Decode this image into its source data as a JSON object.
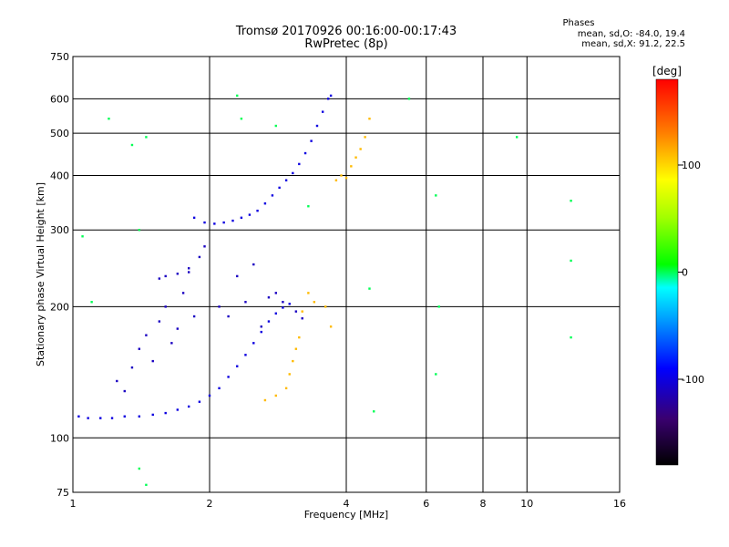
{
  "chart_data": {
    "type": "scatter",
    "title": "Tromsø 20170926 00:16:00-00:17:43",
    "subtitle": "RwPretec (8p)",
    "xlabel": "Frequency [MHz]",
    "ylabel": "Stationary phase Virtual Height [km]",
    "xscale": "log",
    "yscale": "log",
    "xlim": [
      1,
      16
    ],
    "ylim": [
      75,
      750
    ],
    "xticks": [
      1,
      2,
      4,
      6,
      8,
      10,
      16
    ],
    "xtick_labels": [
      "1",
      "2",
      "4",
      "6",
      "8",
      "10",
      "16"
    ],
    "yticks": [
      75,
      100,
      200,
      300,
      400,
      500,
      600,
      750
    ],
    "ytick_labels": [
      "75",
      "100",
      "200",
      "300",
      "400",
      "500",
      "600",
      "750"
    ],
    "stats": {
      "heading": "Phases",
      "line_o": "mean, sd,O: -84.0, 19.4",
      "line_x": "mean, sd,X:  91.2, 22.5"
    },
    "colorbar": {
      "label": "[deg]",
      "range": [
        -180,
        180
      ],
      "ticks": [
        100,
        0,
        -100
      ],
      "tick_labels": [
        "100",
        "0",
        "-100"
      ]
    },
    "series": [
      {
        "name": "O-mode F2 trace (lower)",
        "phase_deg": -100,
        "points": [
          [
            1.03,
            112
          ],
          [
            1.08,
            111
          ],
          [
            1.15,
            111
          ],
          [
            1.22,
            111
          ],
          [
            1.3,
            112
          ],
          [
            1.4,
            112
          ],
          [
            1.5,
            113
          ],
          [
            1.6,
            114
          ],
          [
            1.7,
            116
          ],
          [
            1.8,
            118
          ],
          [
            1.9,
            121
          ],
          [
            2.0,
            125
          ],
          [
            2.1,
            130
          ],
          [
            2.2,
            138
          ],
          [
            2.3,
            146
          ],
          [
            2.4,
            155
          ],
          [
            2.5,
            165
          ],
          [
            2.6,
            175
          ],
          [
            2.7,
            185
          ],
          [
            2.8,
            193
          ],
          [
            2.9,
            199
          ],
          [
            3.0,
            203
          ]
        ]
      },
      {
        "name": "O-mode spread (lower)",
        "phase_deg": -110,
        "points": [
          [
            1.25,
            135
          ],
          [
            1.3,
            128
          ],
          [
            1.35,
            145
          ],
          [
            1.4,
            160
          ],
          [
            1.45,
            172
          ],
          [
            1.5,
            150
          ],
          [
            1.55,
            185
          ],
          [
            1.6,
            200
          ],
          [
            1.65,
            165
          ],
          [
            1.7,
            178
          ],
          [
            1.75,
            215
          ],
          [
            1.8,
            240
          ],
          [
            1.85,
            190
          ],
          [
            1.9,
            260
          ],
          [
            1.95,
            275
          ],
          [
            1.55,
            232
          ],
          [
            1.6,
            235
          ],
          [
            1.7,
            238
          ],
          [
            1.8,
            245
          ],
          [
            2.1,
            200
          ],
          [
            2.2,
            190
          ],
          [
            2.3,
            235
          ],
          [
            2.4,
            205
          ],
          [
            2.5,
            250
          ],
          [
            2.6,
            180
          ],
          [
            2.7,
            210
          ],
          [
            2.8,
            215
          ],
          [
            2.9,
            205
          ],
          [
            3.1,
            195
          ],
          [
            3.2,
            188
          ]
        ]
      },
      {
        "name": "O-mode F2 trace (upper)",
        "phase_deg": -100,
        "points": [
          [
            1.85,
            320
          ],
          [
            1.95,
            312
          ],
          [
            2.05,
            310
          ],
          [
            2.15,
            312
          ],
          [
            2.25,
            315
          ],
          [
            2.35,
            320
          ],
          [
            2.45,
            325
          ],
          [
            2.55,
            332
          ],
          [
            2.65,
            345
          ],
          [
            2.75,
            360
          ],
          [
            2.85,
            375
          ],
          [
            2.95,
            390
          ],
          [
            3.05,
            405
          ],
          [
            3.15,
            425
          ],
          [
            3.25,
            450
          ],
          [
            3.35,
            480
          ],
          [
            3.45,
            520
          ],
          [
            3.55,
            560
          ],
          [
            3.65,
            600
          ],
          [
            3.7,
            610
          ]
        ]
      },
      {
        "name": "X-mode trace",
        "phase_deg": 110,
        "points": [
          [
            2.65,
            122
          ],
          [
            2.8,
            125
          ],
          [
            2.95,
            130
          ],
          [
            3.0,
            140
          ],
          [
            3.05,
            150
          ],
          [
            3.1,
            160
          ],
          [
            3.15,
            170
          ],
          [
            3.2,
            195
          ],
          [
            3.3,
            215
          ],
          [
            3.4,
            205
          ],
          [
            3.6,
            200
          ],
          [
            3.7,
            180
          ],
          [
            3.8,
            390
          ],
          [
            3.9,
            400
          ],
          [
            4.0,
            395
          ],
          [
            4.1,
            420
          ],
          [
            4.2,
            440
          ],
          [
            4.3,
            460
          ],
          [
            4.4,
            490
          ],
          [
            4.5,
            540
          ]
        ]
      },
      {
        "name": "Scattered points",
        "phase_deg": 0,
        "points": [
          [
            1.05,
            290
          ],
          [
            1.1,
            205
          ],
          [
            1.2,
            540
          ],
          [
            1.35,
            470
          ],
          [
            1.4,
            300
          ],
          [
            1.45,
            490
          ],
          [
            1.4,
            85
          ],
          [
            1.45,
            78
          ],
          [
            2.3,
            610
          ],
          [
            2.35,
            540
          ],
          [
            2.8,
            520
          ],
          [
            3.3,
            340
          ],
          [
            4.5,
            220
          ],
          [
            4.6,
            115
          ],
          [
            5.5,
            600
          ],
          [
            6.3,
            360
          ],
          [
            6.4,
            200
          ],
          [
            6.3,
            140
          ],
          [
            9.5,
            490
          ],
          [
            12.5,
            170
          ],
          [
            12.5,
            350
          ],
          [
            12.5,
            255
          ]
        ]
      }
    ]
  }
}
